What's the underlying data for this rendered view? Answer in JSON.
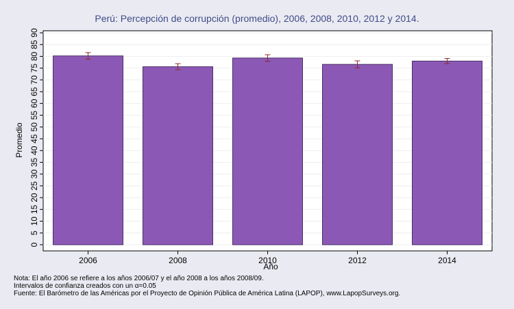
{
  "chart_data": {
    "type": "bar",
    "title": "Perú: Percepción de corrupción (promedio), 2006, 2008, 2010, 2012 y 2014.",
    "xlabel": "Año",
    "ylabel": "Promedio",
    "categories": [
      "2006",
      "2008",
      "2010",
      "2012",
      "2014"
    ],
    "values": [
      80.2,
      75.6,
      79.3,
      76.6,
      78.0
    ],
    "error_low": [
      78.8,
      74.3,
      77.9,
      75.1,
      76.9
    ],
    "error_high": [
      81.6,
      76.9,
      80.7,
      78.1,
      79.1
    ],
    "ylim": [
      0,
      90
    ],
    "yticks": [
      0,
      5,
      10,
      15,
      20,
      25,
      30,
      35,
      40,
      45,
      50,
      55,
      60,
      65,
      70,
      75,
      80,
      85,
      90
    ],
    "grid": true,
    "colors": {
      "bar": "#8b59b5",
      "bar_edge": "#4a2e66",
      "error": "#8c2b2b",
      "plot_bg": "#ffffff",
      "page_bg": "#eaeaf2",
      "title": "#3e4b87",
      "grid": "#eeeeee"
    }
  },
  "notes": [
    "Nota: El año 2006 se refiere a los años 2006/07 y el año 2008 a los años 2008/09.",
    "Intervalos de confianza creados con un α=0.05",
    "Fuente: El Barómetro de las Américas por el Proyecto de Opinión Pública de América Latina (LAPOP), www.LapopSurveys.org."
  ]
}
